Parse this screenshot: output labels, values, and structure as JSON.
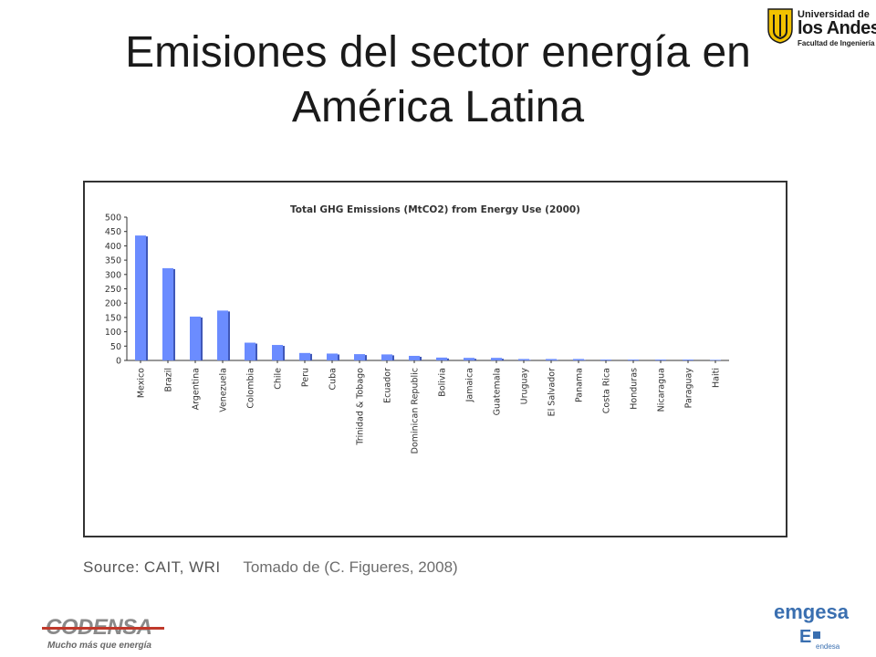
{
  "slide": {
    "title_line1": "Emisiones del sector energía en",
    "title_line2": "América Latina",
    "source_label": "Source:",
    "source_value": "CAIT, WRI",
    "citation": "Tomado de (C. Figueres, 2008)"
  },
  "logos": {
    "university_line1": "Universidad de",
    "university_line2": "los Andes",
    "university_line3": "Facultad de Ingeniería",
    "codensa_word": "CODENSA",
    "codensa_tagline": "Mucho más que energía",
    "emgesa_word": "emgesa",
    "emgesa_sub": "endesa"
  },
  "colors": {
    "bar": "#6b8cff",
    "bar_shadow": "#3f57b8",
    "axis": "#333333",
    "uni_yellow": "#f2c200",
    "codensa_red": "#c0392b",
    "emgesa_blue": "#3a6fb0"
  },
  "chart_data": {
    "type": "bar",
    "title": "Total GHG Emissions (MtCO2) from Energy Use (2000)",
    "xlabel": "",
    "ylabel": "",
    "ylim": [
      0,
      500
    ],
    "yticks": [
      0,
      50,
      100,
      150,
      200,
      250,
      300,
      350,
      400,
      450,
      500
    ],
    "grid": false,
    "legend": "none",
    "categories": [
      "Mexico",
      "Brazil",
      "Argentina",
      "Venezuela",
      "Colombia",
      "Chile",
      "Peru",
      "Cuba",
      "Trinidad & Tobago",
      "Ecuador",
      "Dominican Republic",
      "Bolivia",
      "Jamaica",
      "Guatemala",
      "Uruguay",
      "El Salvador",
      "Panama",
      "Costa Rica",
      "Honduras",
      "Nicaragua",
      "Paraguay",
      "Haiti"
    ],
    "values": [
      436,
      322,
      153,
      174,
      62,
      54,
      26,
      24,
      22,
      21,
      16,
      10,
      9,
      9,
      5,
      5,
      5,
      3,
      3,
      3,
      3,
      2
    ]
  }
}
